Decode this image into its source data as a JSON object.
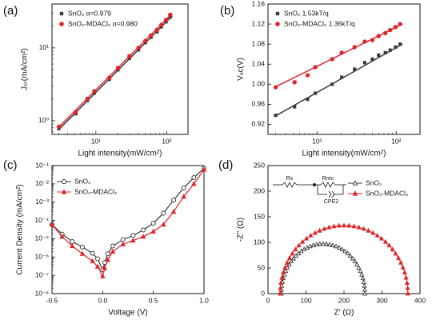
{
  "colors": {
    "control": "#3a3a3a",
    "modified": "#e0242b"
  },
  "chart_data": [
    {
      "panel_label": "(a)",
      "type": "line",
      "x_scale": "log",
      "y_scale": "log",
      "xlabel": "Light intensity(mW/cm²)",
      "ylabel": "Jₛₜ(mA/cm²)",
      "xlim": [
        2.4,
        200
      ],
      "ylim": [
        0.65,
        40
      ],
      "x_ticks": [
        {
          "v": 10,
          "label": "10¹"
        },
        {
          "v": 100,
          "label": "10²"
        }
      ],
      "y_ticks": [
        {
          "v": 1,
          "label": "10⁰"
        },
        {
          "v": 10,
          "label": "10¹"
        }
      ],
      "legend_position": "top-left",
      "grid": false,
      "series": [
        {
          "name": "SnO₂ α=0.979",
          "marker": "square",
          "color": "#3a3a3a",
          "x": [
            3.0,
            5.2,
            7.6,
            9.5,
            15.5,
            20.5,
            29.8,
            40,
            50,
            60,
            73,
            84,
            98,
            112
          ],
          "y": [
            0.78,
            1.25,
            1.9,
            2.4,
            3.7,
            5.0,
            7.2,
            9.4,
            11.8,
            14.0,
            16.6,
            19.4,
            22.8,
            26.5
          ],
          "fit": {
            "x": [
              3.0,
              120
            ],
            "y": [
              0.76,
              27.5
            ]
          }
        },
        {
          "name": "SnO₂-MDACl₂ α=0.980",
          "marker": "circle",
          "color": "#e0242b",
          "x": [
            3.0,
            5.2,
            7.6,
            9.5,
            15.5,
            20.5,
            29.8,
            40,
            50,
            60,
            73,
            84,
            98,
            112
          ],
          "y": [
            0.83,
            1.32,
            2.0,
            2.55,
            3.9,
            5.3,
            7.7,
            10.0,
            12.5,
            14.8,
            17.7,
            20.6,
            24.2,
            28.5
          ],
          "fit": {
            "x": [
              3.0,
              120
            ],
            "y": [
              0.82,
              29.8
            ]
          }
        }
      ]
    },
    {
      "panel_label": "(b)",
      "type": "line",
      "x_scale": "log",
      "xlabel": "Light intensity(mW/cm²)",
      "ylabel": "Vₒᴄ(V)",
      "xlim": [
        2.4,
        200
      ],
      "ylim": [
        0.9,
        1.16
      ],
      "x_ticks": [
        {
          "v": 10,
          "label": "10¹"
        },
        {
          "v": 100,
          "label": "10²"
        }
      ],
      "y_ticks": [
        0.92,
        0.96,
        1.0,
        1.04,
        1.08,
        1.12,
        1.16
      ],
      "legend_position": "top-left",
      "grid": false,
      "series": [
        {
          "name": "SnO₂ 1.53kT/q",
          "marker": "square",
          "color": "#3a3a3a",
          "x": [
            3.0,
            5.2,
            7.6,
            9.5,
            15.5,
            20.5,
            29.8,
            40,
            50,
            60,
            73,
            84,
            98,
            112
          ],
          "y": [
            0.938,
            0.955,
            0.97,
            0.982,
            1.0,
            1.014,
            1.03,
            1.043,
            1.05,
            1.058,
            1.063,
            1.068,
            1.074,
            1.08
          ],
          "fit": {
            "x": [
              3.0,
              120
            ],
            "y": [
              0.937,
              1.08
            ]
          }
        },
        {
          "name": "SnO₂-MDACl₂ 1.36kT/q",
          "marker": "circle",
          "color": "#e0242b",
          "x": [
            3.0,
            5.2,
            7.6,
            9.5,
            15.5,
            20.5,
            29.8,
            40,
            50,
            60,
            73,
            84,
            98,
            112
          ],
          "y": [
            0.994,
            1.004,
            1.018,
            1.034,
            1.05,
            1.063,
            1.074,
            1.085,
            1.088,
            1.096,
            1.102,
            1.108,
            1.114,
            1.12
          ],
          "fit": {
            "x": [
              3.0,
              120
            ],
            "y": [
              0.995,
              1.12
            ]
          }
        }
      ]
    },
    {
      "panel_label": "(c)",
      "type": "line",
      "y_scale": "log",
      "xlabel": "Voltage (V)",
      "ylabel": "Current Density (mA/cm²)",
      "xlim": [
        -0.5,
        1.0
      ],
      "ylim": [
        1e-08,
        0.1
      ],
      "x_ticks": [
        {
          "v": -0.5,
          "label": "-0.5"
        },
        {
          "v": 0.0,
          "label": "0.0"
        },
        {
          "v": 0.5,
          "label": "0.5"
        },
        {
          "v": 1.0,
          "label": "1.0"
        }
      ],
      "y_ticks": [
        {
          "v": 1e-08,
          "label": "10⁻⁸"
        },
        {
          "v": 1e-07,
          "label": "10⁻⁷"
        },
        {
          "v": 1e-06,
          "label": "10⁻⁶"
        },
        {
          "v": 1e-05,
          "label": "10⁻⁵"
        },
        {
          "v": 0.0001,
          "label": "10⁻⁴"
        },
        {
          "v": 0.001,
          "label": "10⁻³"
        },
        {
          "v": 0.01,
          "label": "10⁻²"
        },
        {
          "v": 0.1,
          "label": "10⁻¹"
        }
      ],
      "legend_position": "top-left",
      "grid": false,
      "series": [
        {
          "name": "SnO₂",
          "marker": "circle-open",
          "color": "#3a3a3a",
          "x": [
            -0.5,
            -0.4,
            -0.3,
            -0.2,
            -0.1,
            -0.05,
            0.0,
            0.02,
            0.05,
            0.1,
            0.2,
            0.3,
            0.4,
            0.5,
            0.6,
            0.7,
            0.8,
            0.9,
            1.0
          ],
          "y": [
            6e-05,
            1.8e-05,
            7e-06,
            3.5e-06,
            1.6e-06,
            8e-07,
            2e-07,
            5e-07,
            1.5e-06,
            4e-06,
            9e-06,
            1.5e-05,
            3e-05,
            7e-05,
            0.00025,
            0.0013,
            0.006,
            0.022,
            0.07
          ]
        },
        {
          "name": "SnO₂-MDACl₂",
          "marker": "triangle",
          "color": "#e0242b",
          "x": [
            -0.5,
            -0.4,
            -0.3,
            -0.2,
            -0.1,
            -0.05,
            0.0,
            0.02,
            0.05,
            0.1,
            0.2,
            0.3,
            0.4,
            0.5,
            0.6,
            0.7,
            0.8,
            0.9,
            1.0
          ],
          "y": [
            6e-05,
            1.3e-05,
            4e-06,
            1.5e-06,
            6e-07,
            3e-07,
            9e-08,
            2.5e-07,
            7e-07,
            2e-06,
            5e-06,
            8e-06,
            1.3e-05,
            2.5e-05,
            6e-05,
            0.0003,
            0.002,
            0.01,
            0.06
          ]
        }
      ]
    },
    {
      "panel_label": "(d)",
      "type": "scatter",
      "xlabel": "Z' (Ω)",
      "ylabel": "-Z'' (Ω)",
      "xlim": [
        0,
        400
      ],
      "ylim": [
        0,
        250
      ],
      "x_ticks": [
        0,
        100,
        200,
        300,
        400
      ],
      "y_ticks": [
        0,
        50,
        100,
        150,
        200,
        250
      ],
      "legend_position": "top-right",
      "grid": false,
      "circuit_labels": [
        "Rs",
        "Rrec",
        "CPE2"
      ],
      "series": [
        {
          "name": "SnO₂",
          "marker": "triangle-open",
          "color": "#3a3a3a",
          "semicircle": {
            "x_start": 35,
            "x_end": 255,
            "peak": 97
          }
        },
        {
          "name": "SnO₂-MDACl₂",
          "marker": "triangle",
          "color": "#e0242b",
          "semicircle": {
            "x_start": 32,
            "x_end": 368,
            "peak": 133
          }
        }
      ]
    }
  ]
}
